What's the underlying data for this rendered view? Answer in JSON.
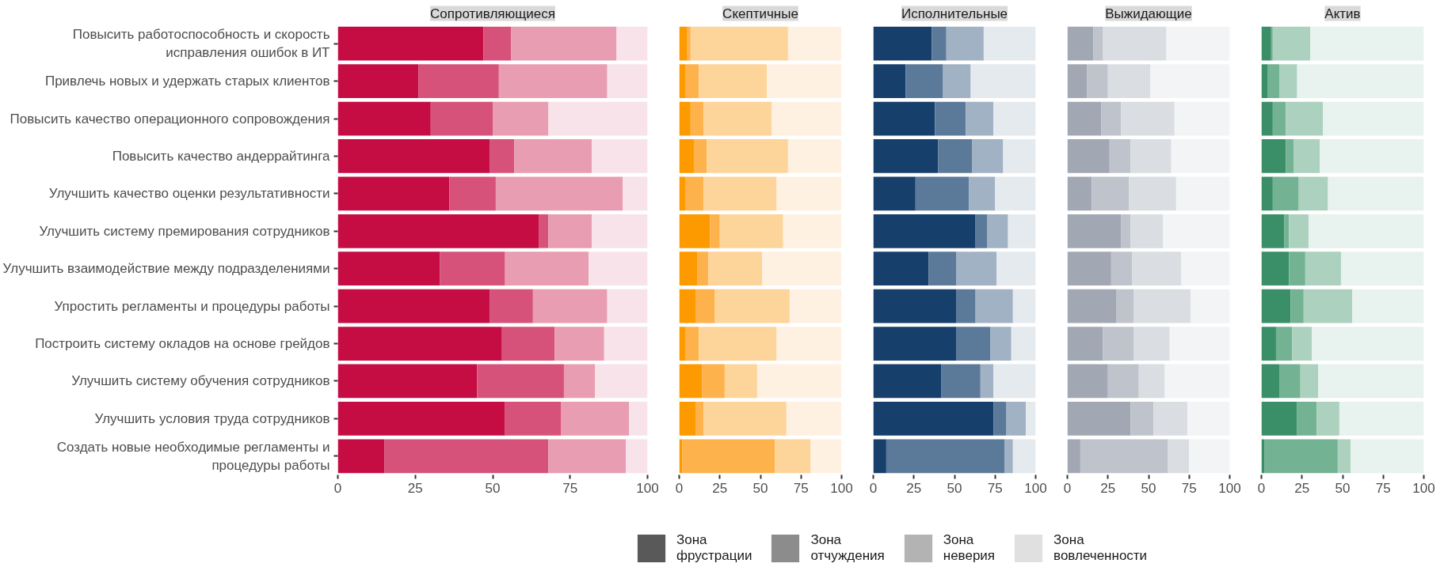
{
  "chart_data": [
    {
      "type": "bar",
      "title": "Сопротивляющиеся",
      "orientation": "horizontal",
      "stacked": true,
      "xlim": [
        0,
        100
      ],
      "xticks": [
        0,
        25,
        50,
        75,
        100
      ],
      "categories": [
        "Повысить работоспособность и скорость\nисправления ошибок в ИТ",
        "Привлечь новых и удержать старых клиентов",
        "Повысить качество операционного сопровождения",
        "Повысить качество андеррайтинга",
        "Улучшить качество оценки результативности",
        "Улучшить систему премирования сотрудников",
        "Улучшить взаимодействие между подразделениями",
        "Упростить регламенты и процедуры работы",
        "Построить систему окладов на основе грейдов",
        "Улучшить систему обучения сотрудников",
        "Улучшить условия труда сотрудников",
        "Создать новые необходимые регламенты и\nпроцедуры работы"
      ],
      "series": [
        {
          "color": "#c50d44",
          "values": [
            47,
            26,
            30,
            49,
            36,
            65,
            33,
            49,
            53,
            45,
            54,
            15
          ]
        },
        {
          "color": "#d6527a",
          "values": [
            9,
            26,
            20,
            8,
            15,
            3,
            21,
            14,
            17,
            28,
            18,
            53
          ]
        },
        {
          "color": "#e89db2",
          "values": [
            34,
            35,
            18,
            25,
            41,
            14,
            27,
            24,
            16,
            10,
            22,
            25
          ]
        },
        {
          "color": "#f8e3ea",
          "values": [
            10,
            13,
            32,
            18,
            8,
            18,
            19,
            13,
            14,
            17,
            6,
            7
          ]
        }
      ]
    },
    {
      "type": "bar",
      "title": "Скептичные",
      "orientation": "horizontal",
      "stacked": true,
      "xlim": [
        0,
        100
      ],
      "xticks": [
        0,
        25,
        50,
        75,
        100
      ],
      "tick_labels": "x",
      "series": [
        {
          "color": "#fd9a00",
          "values": [
            5,
            4,
            7,
            9,
            4,
            19,
            11,
            10,
            4,
            14,
            10,
            2
          ]
        },
        {
          "color": "#feb24c",
          "values": [
            2,
            8,
            8,
            8,
            11,
            6,
            7,
            12,
            8,
            14,
            5,
            57
          ]
        },
        {
          "color": "#fdd49a",
          "values": [
            60,
            42,
            42,
            50,
            45,
            39,
            33,
            46,
            48,
            20,
            51,
            22
          ]
        },
        {
          "color": "#fff1e2",
          "values": [
            33,
            46,
            43,
            33,
            40,
            36,
            49,
            32,
            40,
            52,
            34,
            19
          ]
        }
      ]
    },
    {
      "type": "bar",
      "title": "Исполнительные",
      "orientation": "horizontal",
      "stacked": true,
      "xlim": [
        0,
        100
      ],
      "xticks": [
        0,
        25,
        50,
        75,
        100
      ],
      "tick_labels": "x",
      "series": [
        {
          "color": "#163f6c",
          "values": [
            36,
            20,
            38,
            40,
            26,
            63,
            34,
            51,
            51,
            42,
            74,
            8
          ]
        },
        {
          "color": "#5b7a9a",
          "values": [
            9,
            23,
            19,
            21,
            33,
            7,
            17,
            12,
            21,
            24,
            8,
            73
          ]
        },
        {
          "color": "#a1b2c5",
          "values": [
            23,
            17,
            17,
            19,
            16,
            13,
            25,
            23,
            13,
            8,
            12,
            5
          ]
        },
        {
          "color": "#e5eaef",
          "values": [
            32,
            40,
            26,
            20,
            25,
            17,
            24,
            14,
            15,
            26,
            6,
            14
          ]
        }
      ]
    },
    {
      "type": "bar",
      "title": "Выжидающие",
      "orientation": "horizontal",
      "stacked": true,
      "xlim": [
        0,
        100
      ],
      "xticks": [
        0,
        25,
        50,
        75,
        100
      ],
      "tick_labels": "x",
      "series": [
        {
          "color": "#a2a8b3",
          "values": [
            16,
            12,
            21,
            26,
            15,
            33,
            27,
            30,
            22,
            25,
            39,
            8
          ]
        },
        {
          "color": "#bfc3cb",
          "values": [
            6,
            13,
            12,
            13,
            23,
            6,
            13,
            11,
            19,
            19,
            14,
            54
          ]
        },
        {
          "color": "#dadde1",
          "values": [
            39,
            26,
            33,
            25,
            29,
            20,
            30,
            35,
            22,
            16,
            21,
            13
          ]
        },
        {
          "color": "#f3f4f6",
          "values": [
            39,
            49,
            34,
            36,
            33,
            41,
            30,
            24,
            37,
            40,
            26,
            25
          ]
        }
      ]
    },
    {
      "type": "bar",
      "title": "Актив",
      "orientation": "horizontal",
      "stacked": true,
      "xlim": [
        0,
        100
      ],
      "xticks": [
        0,
        25,
        50,
        75,
        100
      ],
      "tick_labels": "x",
      "series": [
        {
          "color": "#3a8f68",
          "values": [
            6,
            4,
            7,
            15,
            7,
            14,
            17,
            18,
            9,
            11,
            22,
            2
          ]
        },
        {
          "color": "#73b293",
          "values": [
            1,
            7,
            8,
            5,
            16,
            3,
            10,
            8,
            10,
            13,
            12,
            45
          ]
        },
        {
          "color": "#acd1bf",
          "values": [
            23,
            11,
            23,
            16,
            18,
            12,
            22,
            30,
            12,
            11,
            14,
            8
          ]
        },
        {
          "color": "#e8f2ee",
          "values": [
            70,
            78,
            62,
            64,
            59,
            71,
            51,
            44,
            69,
            65,
            52,
            45
          ]
        }
      ]
    },
    {
      "type": "other",
      "categories": [
        "Зона\nфрустрации",
        "Зона\nотчуждения",
        "Зона\nневерия",
        "Зона\nвовлеченности"
      ],
      "colors": [
        "#595959",
        "#8c8c8c",
        "#b3b3b3",
        "#e0e0e0"
      ]
    }
  ]
}
